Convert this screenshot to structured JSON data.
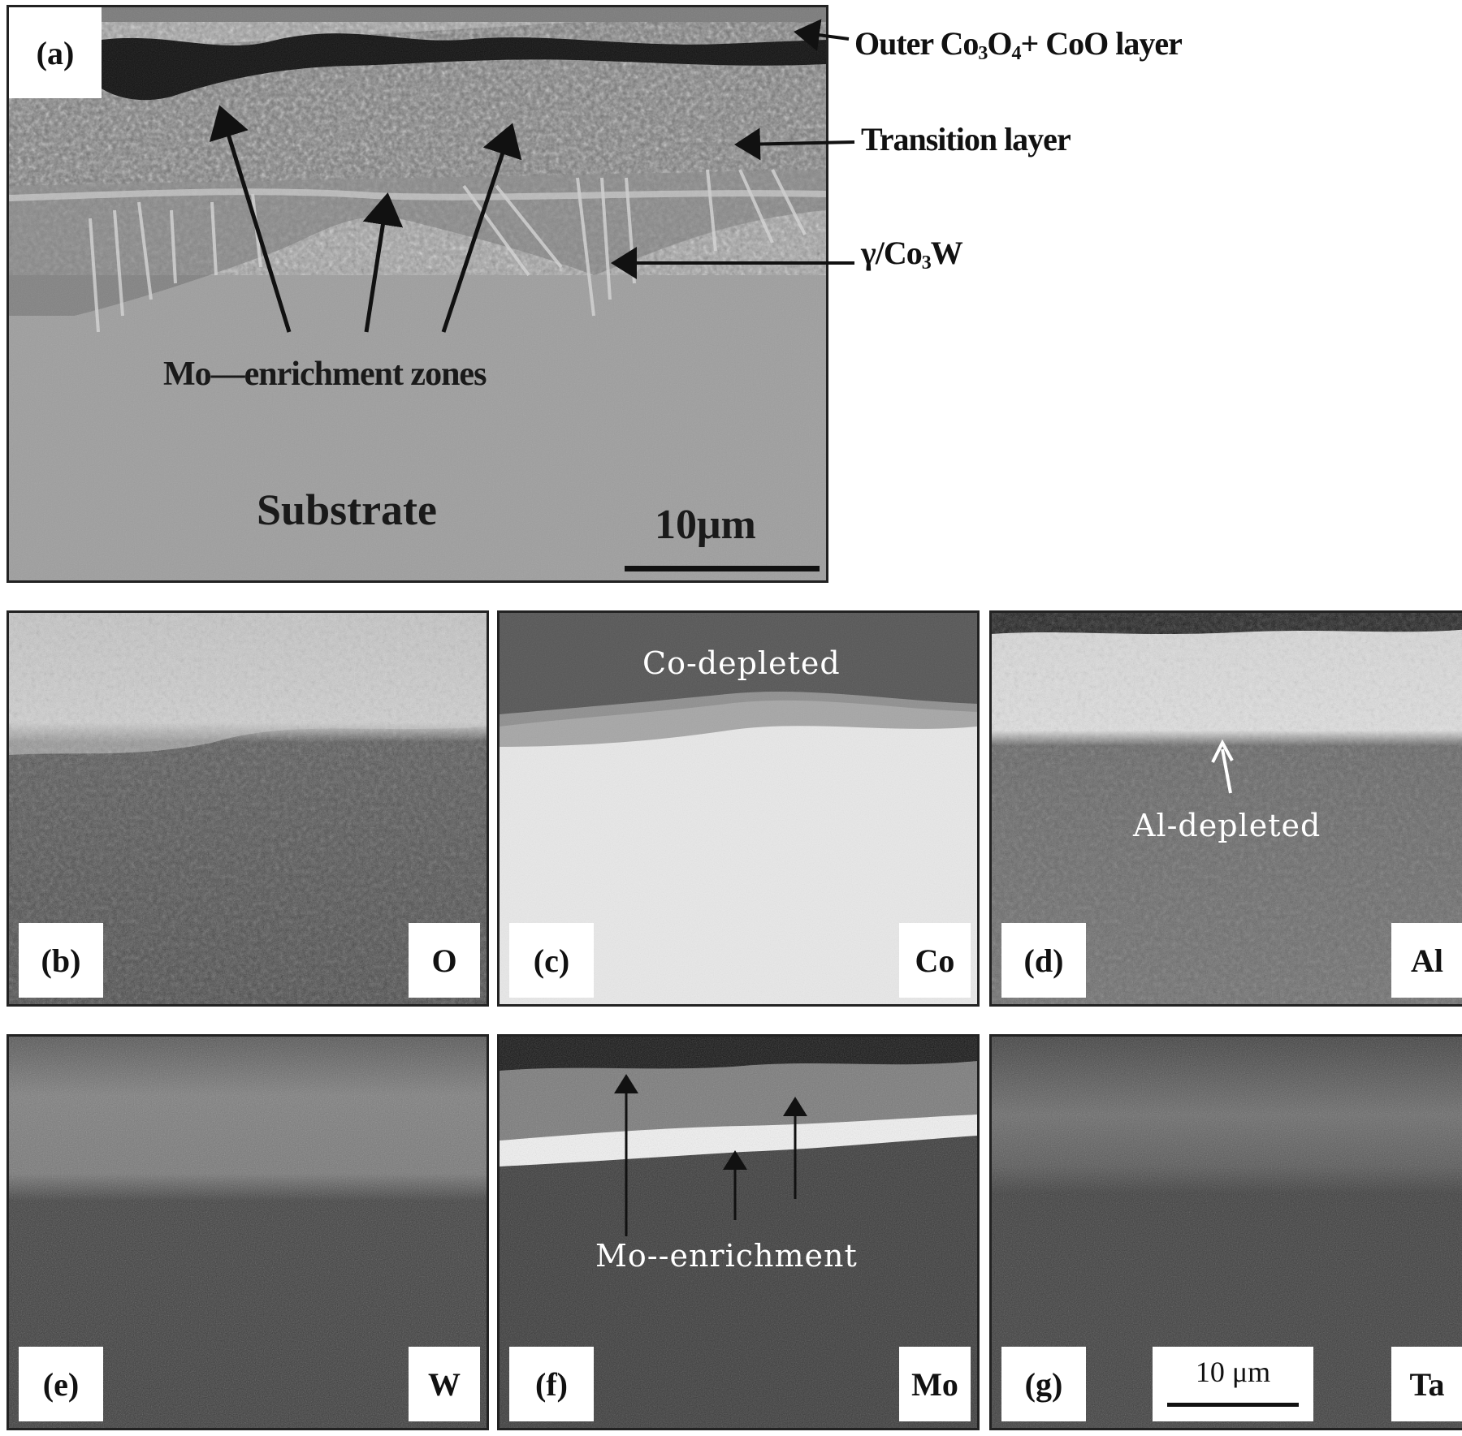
{
  "panel_a": {
    "tag": "(a)",
    "mo_zones": "Mo—enrichment zones",
    "substrate": "Substrate",
    "scale": "10μm",
    "outer_prefix": "Outer Co",
    "outer_mid1": "3",
    "outer_mid2": "O",
    "outer_mid3": "4",
    "outer_suffix": "+ CoO layer",
    "transition": "Transition layer",
    "gamma_prefix": "γ/Co",
    "gamma_sub": "3",
    "gamma_suffix": "W"
  },
  "panel_b": {
    "tag": "(b)",
    "element": "O"
  },
  "panel_c": {
    "tag": "(c)",
    "element": "Co",
    "note": "Co-depleted"
  },
  "panel_d": {
    "tag": "(d)",
    "element": "Al",
    "note": "Al-depleted"
  },
  "panel_e": {
    "tag": "(e)",
    "element": "W"
  },
  "panel_f": {
    "tag": "(f)",
    "element": "Mo",
    "note": "Mo--enrichment"
  },
  "panel_g": {
    "tag": "(g)",
    "element": "Ta",
    "scale": "10 μm"
  },
  "colors": {
    "substrate_gray": "#9c9c9c",
    "oxide_black": "#0e0e0e",
    "map_dark": "#3a3a3a",
    "map_bright": "#e6e6e6"
  }
}
